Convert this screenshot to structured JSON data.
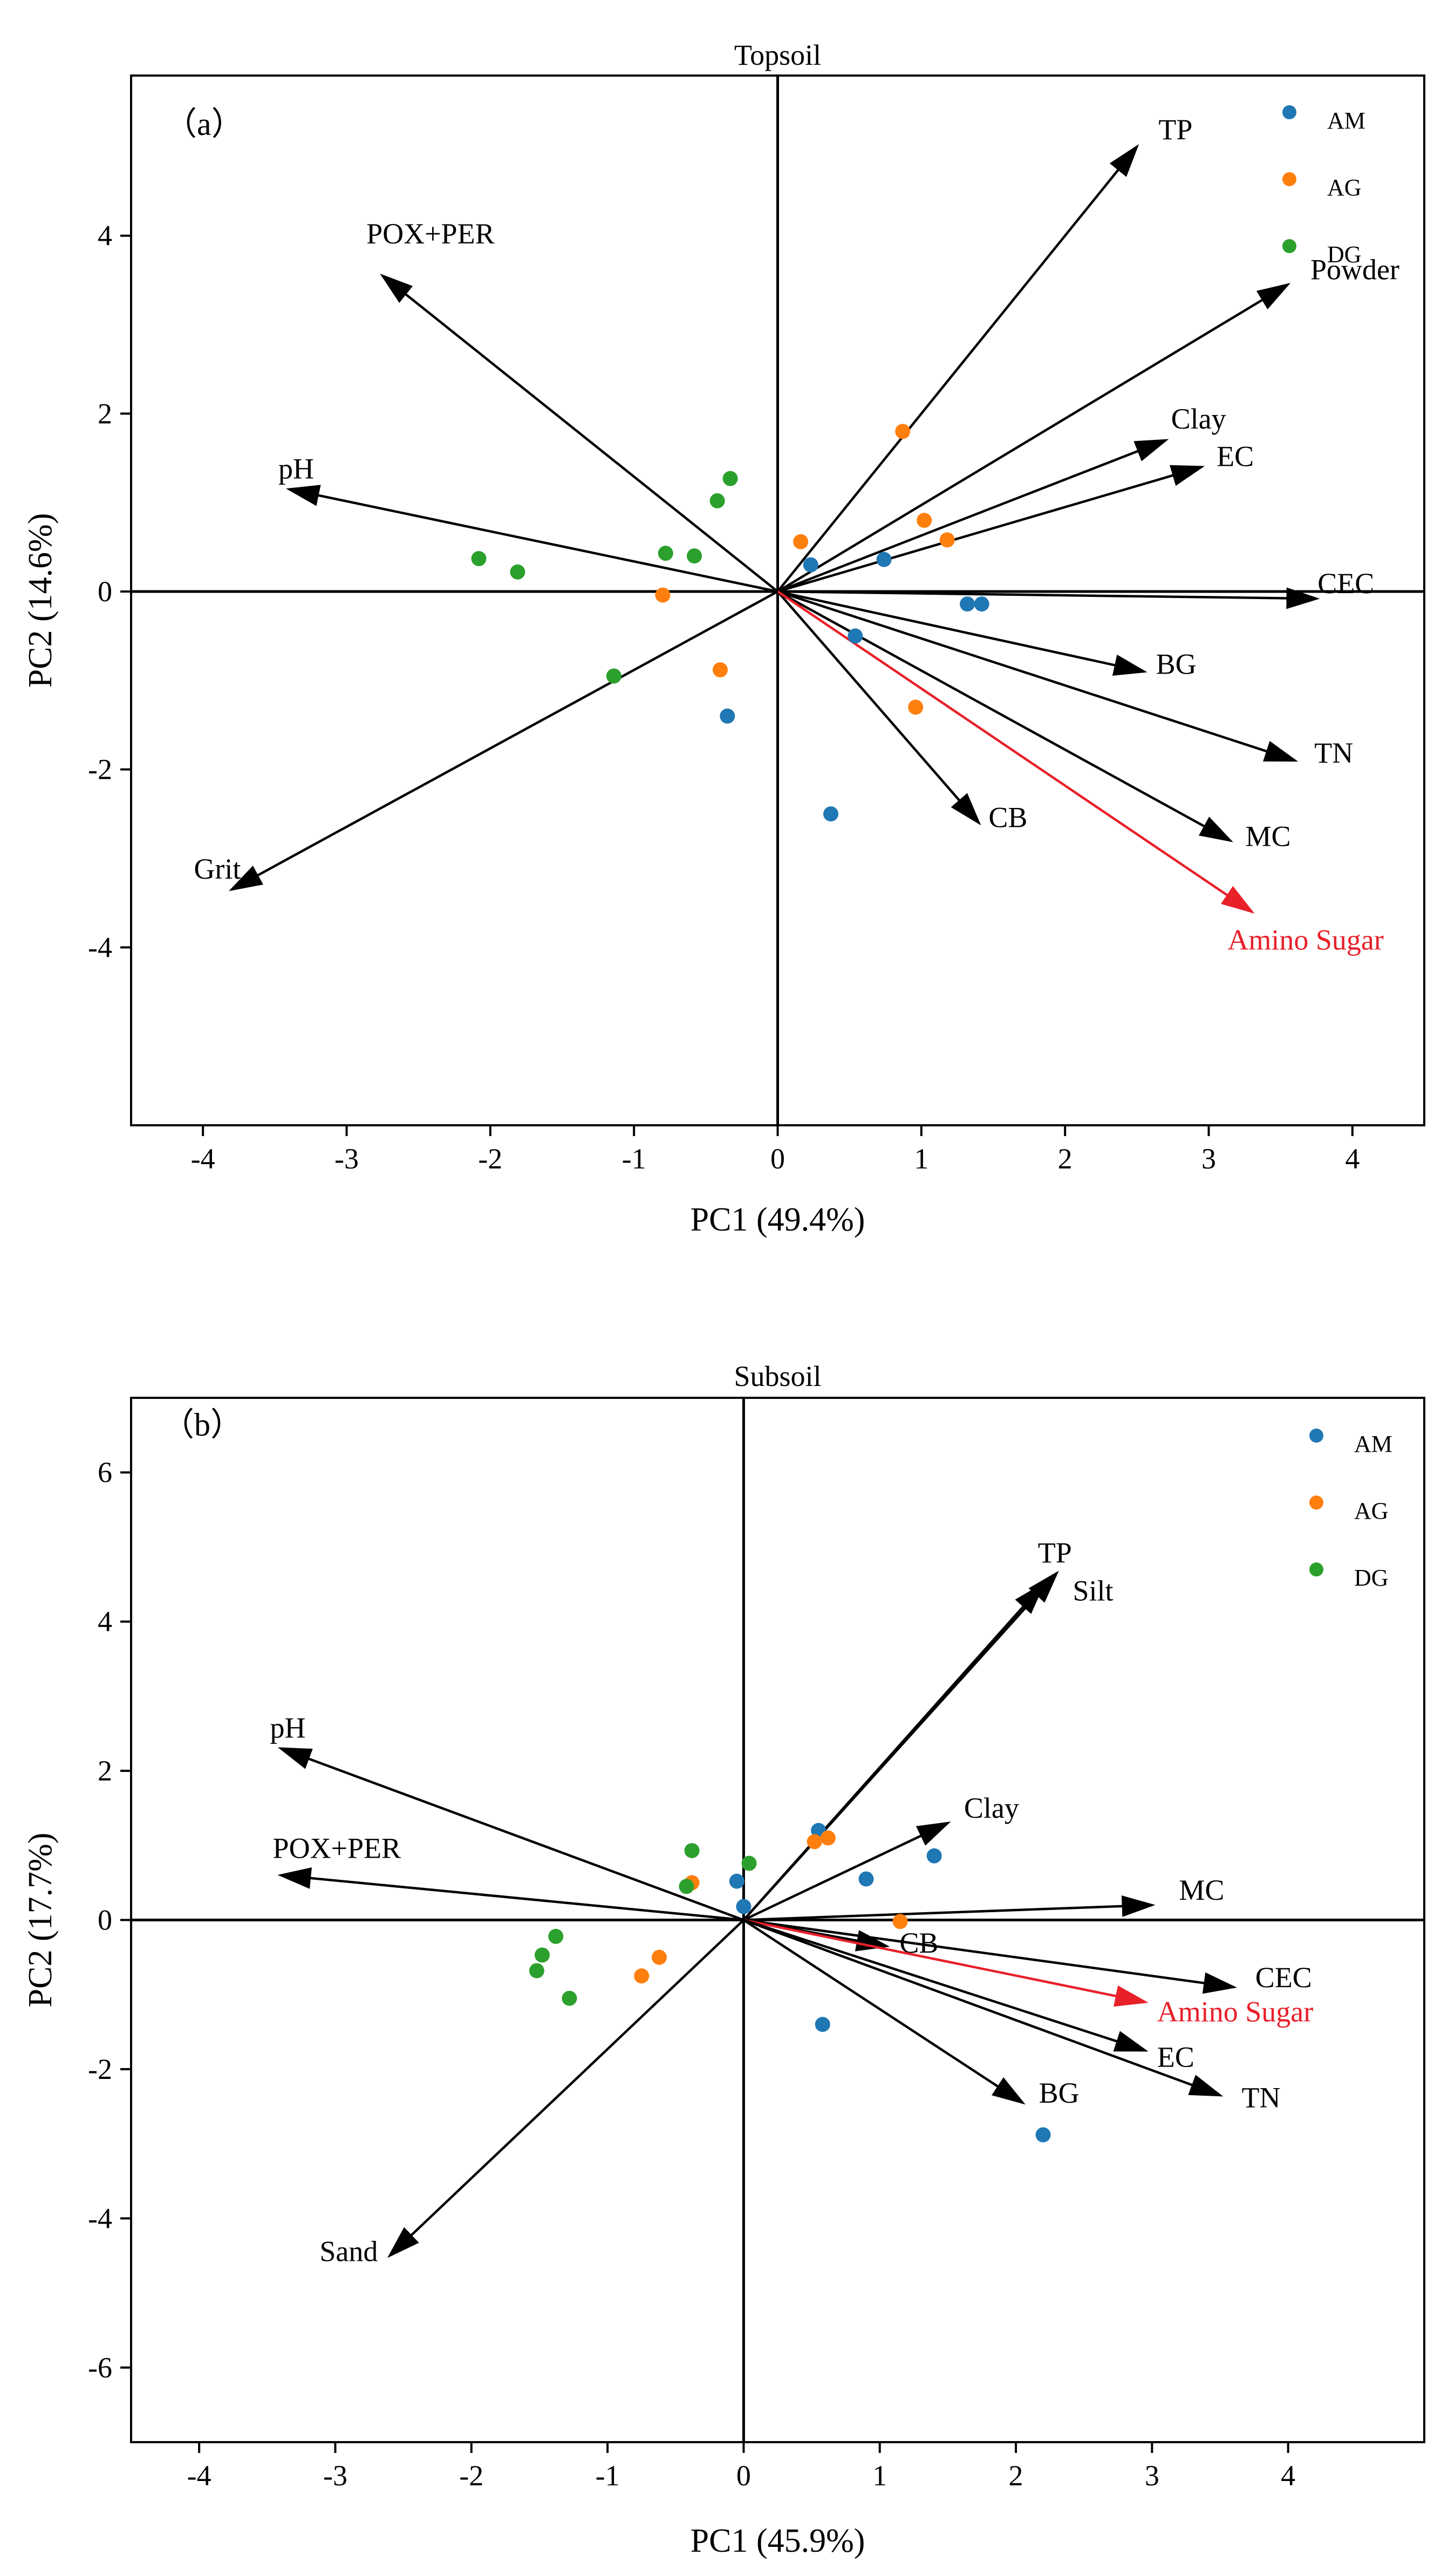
{
  "chart_data": [
    {
      "type": "scatter",
      "subtype": "pca-biplot",
      "panel_label": "（a）",
      "title": "Topsoil",
      "xlabel": "PC1 (49.4%)",
      "ylabel": "PC2 (14.6%)",
      "xlim": [
        -4.5,
        4.5
      ],
      "ylim": [
        -6,
        5.8
      ],
      "xticks": [
        -4,
        -3,
        -2,
        -1,
        0,
        1,
        2,
        3,
        4
      ],
      "yticks": [
        -4,
        -2,
        0,
        2,
        4
      ],
      "legend_position": "top-right",
      "series": [
        {
          "name": "AM",
          "color": "#1f77b4",
          "points": [
            [
              0.23,
              0.3
            ],
            [
              0.74,
              0.36
            ],
            [
              0.54,
              -0.5
            ],
            [
              1.32,
              -0.14
            ],
            [
              1.42,
              -0.14
            ],
            [
              -0.35,
              -1.4
            ],
            [
              0.37,
              -2.5
            ]
          ]
        },
        {
          "name": "AG",
          "color": "#ff7f0e",
          "points": [
            [
              0.87,
              1.8
            ],
            [
              0.16,
              0.56
            ],
            [
              1.02,
              0.8
            ],
            [
              1.18,
              0.58
            ],
            [
              -0.8,
              -0.04
            ],
            [
              -0.4,
              -0.88
            ],
            [
              0.96,
              -1.3
            ]
          ]
        },
        {
          "name": "DG",
          "color": "#2ca02c",
          "points": [
            [
              -0.33,
              1.27
            ],
            [
              -0.42,
              1.02
            ],
            [
              -2.08,
              0.37
            ],
            [
              -1.81,
              0.22
            ],
            [
              -0.78,
              0.43
            ],
            [
              -0.58,
              0.4
            ],
            [
              -1.14,
              -0.95
            ]
          ]
        }
      ],
      "vectors": [
        {
          "name": "TP",
          "x": 2.5,
          "y": 5.0,
          "color": "#000000"
        },
        {
          "name": "Powder",
          "x": 3.55,
          "y": 3.45,
          "color": "#000000"
        },
        {
          "name": "Clay",
          "x": 2.7,
          "y": 1.7,
          "color": "#000000"
        },
        {
          "name": "EC",
          "x": 2.95,
          "y": 1.4,
          "color": "#000000"
        },
        {
          "name": "CEC",
          "x": 3.75,
          "y": -0.08,
          "color": "#000000"
        },
        {
          "name": "BG",
          "x": 2.55,
          "y": -0.9,
          "color": "#000000"
        },
        {
          "name": "TN",
          "x": 3.6,
          "y": -1.9,
          "color": "#000000"
        },
        {
          "name": "MC",
          "x": 3.15,
          "y": -2.8,
          "color": "#000000"
        },
        {
          "name": "CB",
          "x": 1.4,
          "y": -2.6,
          "color": "#000000"
        },
        {
          "name": "Amino Sugar",
          "x": 3.3,
          "y": -3.6,
          "color": "#e8202a"
        },
        {
          "name": "POX+PER",
          "x": -2.75,
          "y": 3.55,
          "color": "#000000"
        },
        {
          "name": "pH",
          "x": -3.4,
          "y": 1.15,
          "color": "#000000"
        },
        {
          "name": "Grit",
          "x": -3.8,
          "y": -3.35,
          "color": "#000000"
        }
      ]
    },
    {
      "type": "scatter",
      "subtype": "pca-biplot",
      "panel_label": "（b）",
      "title": "Subsoil",
      "xlabel": "PC1 (45.9%)",
      "ylabel": "PC2 (17.7%)",
      "xlim": [
        -4.5,
        5
      ],
      "ylim": [
        -7,
        7
      ],
      "xticks": [
        -4,
        -3,
        -2,
        -1,
        0,
        1,
        2,
        3,
        4
      ],
      "yticks": [
        -6,
        -4,
        -2,
        0,
        2,
        4,
        6
      ],
      "legend_position": "top-right",
      "series": [
        {
          "name": "AM",
          "color": "#1f77b4",
          "points": [
            [
              0.55,
              1.2
            ],
            [
              0.9,
              0.55
            ],
            [
              1.4,
              0.86
            ],
            [
              -0.05,
              0.52
            ],
            [
              0.0,
              0.18
            ],
            [
              0.58,
              -1.4
            ],
            [
              2.2,
              -2.88
            ]
          ]
        },
        {
          "name": "AG",
          "color": "#ff7f0e",
          "points": [
            [
              0.52,
              1.05
            ],
            [
              0.62,
              1.1
            ],
            [
              -0.38,
              0.5
            ],
            [
              -0.62,
              -0.5
            ],
            [
              -0.75,
              -0.75
            ],
            [
              1.15,
              -0.02
            ]
          ]
        },
        {
          "name": "DG",
          "color": "#2ca02c",
          "points": [
            [
              -0.38,
              0.93
            ],
            [
              0.04,
              0.76
            ],
            [
              -0.42,
              0.45
            ],
            [
              -1.38,
              -0.22
            ],
            [
              -1.48,
              -0.47
            ],
            [
              -1.52,
              -0.68
            ],
            [
              -1.28,
              -1.05
            ]
          ]
        }
      ],
      "vectors": [
        {
          "name": "TP",
          "x": 2.3,
          "y": 4.65,
          "color": "#000000"
        },
        {
          "name": "Silt",
          "x": 2.2,
          "y": 4.5,
          "color": "#000000"
        },
        {
          "name": "Clay",
          "x": 1.5,
          "y": 1.3,
          "color": "#000000"
        },
        {
          "name": "MC",
          "x": 3.0,
          "y": 0.2,
          "color": "#000000"
        },
        {
          "name": "CB",
          "x": 1.05,
          "y": -0.35,
          "color": "#000000"
        },
        {
          "name": "CEC",
          "x": 3.6,
          "y": -0.9,
          "color": "#000000"
        },
        {
          "name": "Amino Sugar",
          "x": 2.95,
          "y": -1.1,
          "color": "#e8202a"
        },
        {
          "name": "EC",
          "x": 2.95,
          "y": -1.75,
          "color": "#000000"
        },
        {
          "name": "TN",
          "x": 3.5,
          "y": -2.35,
          "color": "#000000"
        },
        {
          "name": "BG",
          "x": 2.05,
          "y": -2.45,
          "color": "#000000"
        },
        {
          "name": "pH",
          "x": -3.4,
          "y": 2.3,
          "color": "#000000"
        },
        {
          "name": "POX+PER",
          "x": -3.4,
          "y": 0.6,
          "color": "#000000"
        },
        {
          "name": "Sand",
          "x": -2.6,
          "y": -4.5,
          "color": "#000000"
        }
      ]
    }
  ]
}
